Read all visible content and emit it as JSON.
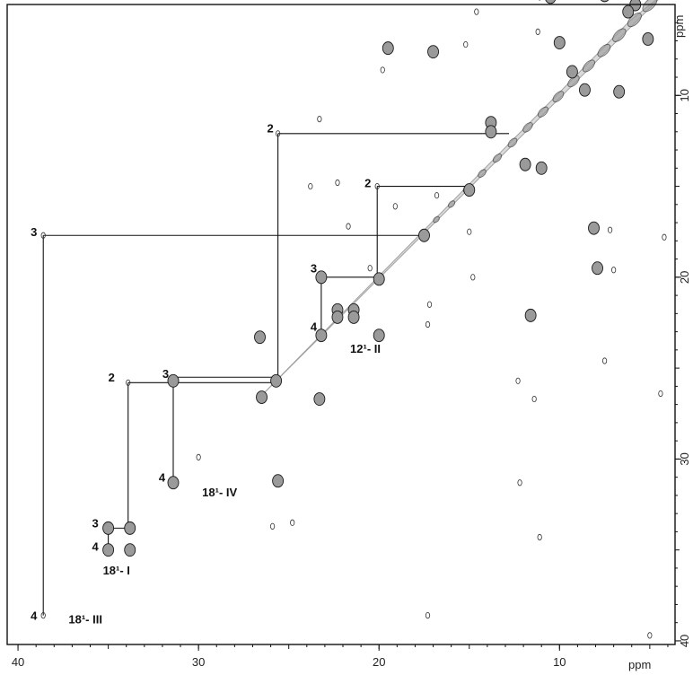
{
  "chart_data": {
    "type": "scatter",
    "title": "",
    "xlabel": "ppm",
    "ylabel": "ppm",
    "xlim": [
      40.6,
      3.6
    ],
    "ylim": [
      5.0,
      40.2
    ],
    "x_ticks": [
      40,
      30,
      20,
      10
    ],
    "y_ticks": [
      10,
      20,
      30,
      40
    ],
    "x_tick_labels": [
      "40",
      "30",
      "20",
      "10"
    ],
    "y_tick_labels": [
      "10",
      "20",
      "30",
      "40"
    ],
    "x_unit_label": "ppm",
    "y_unit_label": "ppm",
    "grid": false,
    "peaks_strong": [
      [
        26.6,
        23.3
      ],
      [
        25.7,
        25.7
      ],
      [
        26.5,
        26.6
      ],
      [
        23.3,
        26.7
      ],
      [
        25.6,
        31.2
      ],
      [
        23.2,
        20.0
      ],
      [
        22.3,
        21.8
      ],
      [
        21.4,
        21.8
      ],
      [
        22.3,
        22.2
      ],
      [
        21.4,
        22.2
      ],
      [
        23.2,
        23.2
      ],
      [
        20.0,
        20.1
      ],
      [
        20.0,
        23.2
      ],
      [
        31.4,
        25.7
      ],
      [
        31.4,
        31.3
      ],
      [
        35.0,
        33.8
      ],
      [
        33.8,
        33.8
      ],
      [
        35.0,
        35.0
      ],
      [
        33.8,
        35.0
      ],
      [
        17.5,
        17.7
      ],
      [
        19.5,
        7.4
      ],
      [
        17.0,
        7.6
      ],
      [
        13.8,
        11.5
      ],
      [
        13.8,
        12.0
      ],
      [
        15.0,
        15.2
      ],
      [
        11.9,
        13.8
      ],
      [
        11.0,
        14.0
      ],
      [
        8.1,
        17.3
      ],
      [
        7.9,
        19.5
      ],
      [
        9.3,
        8.7
      ],
      [
        10.0,
        7.1
      ],
      [
        8.6,
        9.7
      ],
      [
        6.7,
        9.8
      ],
      [
        10.5,
        4.6
      ],
      [
        7.5,
        4.5
      ],
      [
        5.8,
        5.0
      ],
      [
        6.2,
        5.4
      ],
      [
        11.6,
        22.1
      ],
      [
        5.1,
        6.9
      ]
    ],
    "peaks_weak": [
      [
        25.6,
        12.1
      ],
      [
        20.1,
        15.0
      ],
      [
        38.6,
        17.7
      ],
      [
        33.9,
        25.8
      ],
      [
        38.6,
        38.6
      ],
      [
        17.2,
        21.5
      ],
      [
        17.3,
        22.6
      ],
      [
        15.0,
        17.5
      ],
      [
        14.8,
        20.0
      ],
      [
        16.8,
        15.5
      ],
      [
        12.3,
        25.7
      ],
      [
        11.4,
        26.7
      ],
      [
        12.2,
        31.3
      ],
      [
        17.3,
        38.6
      ],
      [
        23.3,
        11.3
      ],
      [
        23.8,
        15.0
      ],
      [
        22.3,
        14.8
      ],
      [
        21.7,
        17.2
      ],
      [
        30.0,
        29.9
      ],
      [
        25.9,
        33.7
      ],
      [
        24.8,
        33.5
      ],
      [
        19.8,
        8.6
      ],
      [
        15.2,
        7.2
      ],
      [
        14.6,
        5.4
      ],
      [
        11.2,
        6.5
      ],
      [
        11.1,
        4.6
      ],
      [
        7.0,
        19.6
      ],
      [
        7.2,
        17.4
      ],
      [
        11.1,
        34.3
      ],
      [
        4.2,
        17.8
      ],
      [
        7.5,
        24.6
      ],
      [
        4.4,
        26.4
      ],
      [
        5.0,
        39.7
      ],
      [
        19.1,
        16.1
      ],
      [
        20.5,
        19.5
      ]
    ],
    "diagonal": [
      [
        5.0,
        5.0
      ],
      [
        26.5,
        26.5
      ]
    ],
    "annotations": [
      {
        "text": "2",
        "x": 26.2,
        "y": 11.8
      },
      {
        "text": "2",
        "x": 20.8,
        "y": 14.8
      },
      {
        "text": "3",
        "x": 39.3,
        "y": 17.5
      },
      {
        "text": "3",
        "x": 23.8,
        "y": 19.5
      },
      {
        "text": "4",
        "x": 23.8,
        "y": 22.7
      },
      {
        "text": "12¹- II",
        "x": 21.6,
        "y": 23.9
      },
      {
        "text": "2",
        "x": 35.0,
        "y": 25.5
      },
      {
        "text": "3",
        "x": 32.0,
        "y": 25.3
      },
      {
        "text": "4",
        "x": 32.2,
        "y": 31.0
      },
      {
        "text": "18¹- IV",
        "x": 29.8,
        "y": 31.8
      },
      {
        "text": "3",
        "x": 35.9,
        "y": 33.5
      },
      {
        "text": "4",
        "x": 35.9,
        "y": 34.8
      },
      {
        "text": "18¹- I",
        "x": 35.3,
        "y": 36.1
      },
      {
        "text": "4",
        "x": 39.3,
        "y": 38.6
      },
      {
        "text": "18¹- III",
        "x": 37.2,
        "y": 38.8
      }
    ],
    "connectors": [
      [
        [
          25.6,
          12.1
        ],
        [
          12.8,
          12.1
        ]
      ],
      [
        [
          25.6,
          12.1
        ],
        [
          25.6,
          25.7
        ]
      ],
      [
        [
          20.1,
          15.0
        ],
        [
          15.1,
          15.0
        ]
      ],
      [
        [
          20.1,
          15.0
        ],
        [
          20.1,
          20.0
        ]
      ],
      [
        [
          38.6,
          17.7
        ],
        [
          17.6,
          17.7
        ]
      ],
      [
        [
          38.6,
          17.7
        ],
        [
          38.6,
          38.6
        ]
      ],
      [
        [
          23.2,
          20.0
        ],
        [
          20.1,
          20.0
        ]
      ],
      [
        [
          23.2,
          20.0
        ],
        [
          23.2,
          23.2
        ]
      ],
      [
        [
          33.9,
          25.8
        ],
        [
          25.7,
          25.8
        ]
      ],
      [
        [
          31.4,
          25.5
        ],
        [
          25.7,
          25.5
        ]
      ],
      [
        [
          31.4,
          25.7
        ],
        [
          31.4,
          31.2
        ]
      ],
      [
        [
          33.9,
          25.8
        ],
        [
          33.9,
          33.8
        ]
      ],
      [
        [
          35.0,
          33.8
        ],
        [
          33.8,
          33.8
        ]
      ],
      [
        [
          35.0,
          33.8
        ],
        [
          35.0,
          35.0
        ]
      ]
    ]
  }
}
